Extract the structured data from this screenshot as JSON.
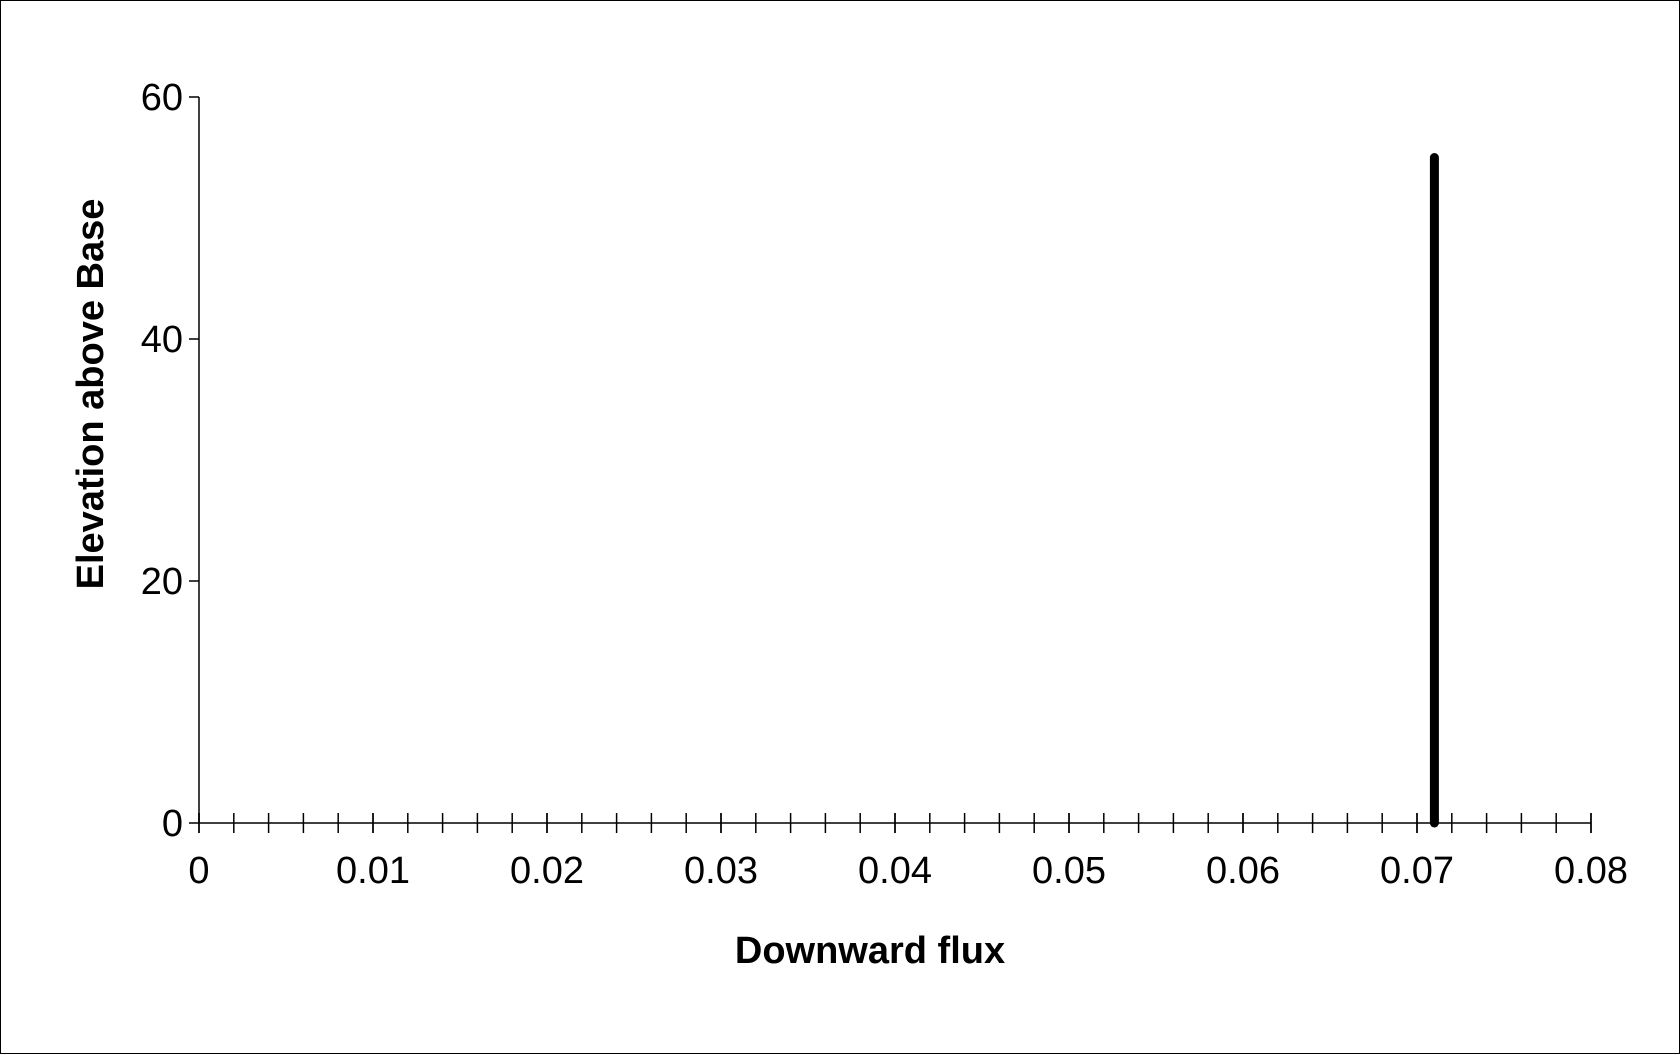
{
  "chart_data": {
    "type": "line",
    "title": "",
    "xlabel": "Downward flux",
    "ylabel": "Elevation above Base",
    "xlim": [
      0,
      0.08
    ],
    "ylim": [
      0,
      60
    ],
    "x_major_ticks": [
      0,
      0.01,
      0.02,
      0.03,
      0.04,
      0.05,
      0.06,
      0.07,
      0.08
    ],
    "x_tick_labels": [
      "0",
      "0.01",
      "0.02",
      "0.03",
      "0.04",
      "0.05",
      "0.06",
      "0.07",
      "0.08"
    ],
    "x_minor_step": 0.002,
    "y_major_ticks": [
      0,
      20,
      40,
      60
    ],
    "y_tick_labels": [
      "0",
      "20",
      "40",
      "60"
    ],
    "grid": false,
    "legend": "none",
    "series": [
      {
        "color": "#000000",
        "points": [
          {
            "x": 0.071,
            "y": 0
          },
          {
            "x": 0.071,
            "y": 55
          }
        ]
      }
    ]
  }
}
